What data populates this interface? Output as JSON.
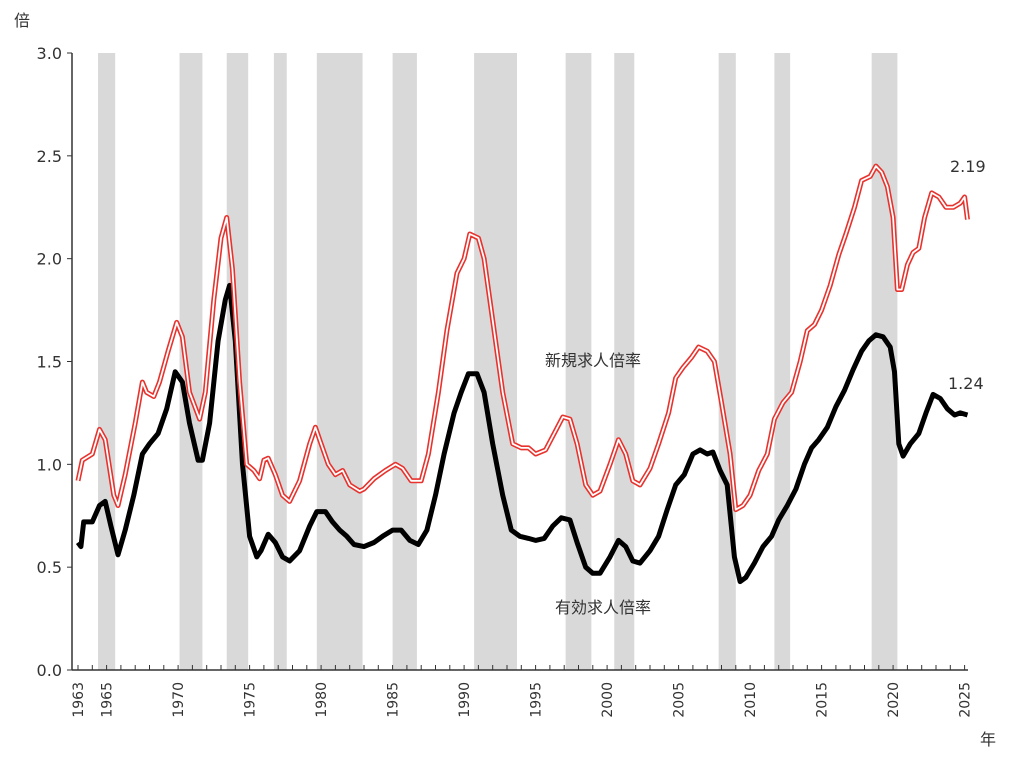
{
  "chart_data": {
    "type": "line",
    "title": "",
    "ylabel": "倍",
    "xlabel": "年",
    "ylim": [
      0,
      3.0
    ],
    "xlim": [
      1963,
      2025
    ],
    "yticks": [
      "0.0",
      "0.5",
      "1.0",
      "1.5",
      "2.0",
      "2.5",
      "3.0"
    ],
    "xticks": [
      "1963",
      "1965",
      "1970",
      "1975",
      "1980",
      "1985",
      "1990",
      "1995",
      "2000",
      "2005",
      "2010",
      "2015",
      "2020",
      "2025"
    ],
    "grid": false,
    "recession_bands": [
      [
        1964.4,
        1965.6
      ],
      [
        1970.1,
        1971.7
      ],
      [
        1973.4,
        1974.9
      ],
      [
        1976.7,
        1977.6
      ],
      [
        1979.7,
        1982.9
      ],
      [
        1985.0,
        1986.7
      ],
      [
        1990.7,
        1993.7
      ],
      [
        1997.1,
        1998.9
      ],
      [
        2000.5,
        2001.9
      ],
      [
        2007.8,
        2009.0
      ],
      [
        2011.7,
        2012.8
      ],
      [
        2018.5,
        2020.3
      ]
    ],
    "series": [
      {
        "name": "新規求人倍率",
        "color": "#e8322d",
        "end_label": "2.19",
        "points": [
          [
            1963.0,
            0.92
          ],
          [
            1963.3,
            1.02
          ],
          [
            1964.0,
            1.05
          ],
          [
            1964.5,
            1.17
          ],
          [
            1964.9,
            1.12
          ],
          [
            1965.5,
            0.85
          ],
          [
            1965.8,
            0.8
          ],
          [
            1966.3,
            0.95
          ],
          [
            1967.0,
            1.2
          ],
          [
            1967.5,
            1.4
          ],
          [
            1967.8,
            1.35
          ],
          [
            1968.3,
            1.33
          ],
          [
            1968.7,
            1.4
          ],
          [
            1969.3,
            1.55
          ],
          [
            1969.9,
            1.69
          ],
          [
            1970.3,
            1.62
          ],
          [
            1970.8,
            1.35
          ],
          [
            1971.5,
            1.22
          ],
          [
            1971.9,
            1.35
          ],
          [
            1972.5,
            1.8
          ],
          [
            1973.0,
            2.1
          ],
          [
            1973.4,
            2.2
          ],
          [
            1973.8,
            1.95
          ],
          [
            1974.3,
            1.4
          ],
          [
            1974.8,
            1.0
          ],
          [
            1975.3,
            0.97
          ],
          [
            1975.7,
            0.93
          ],
          [
            1976.0,
            1.02
          ],
          [
            1976.3,
            1.03
          ],
          [
            1976.8,
            0.95
          ],
          [
            1977.3,
            0.85
          ],
          [
            1977.8,
            0.82
          ],
          [
            1978.5,
            0.92
          ],
          [
            1979.2,
            1.1
          ],
          [
            1979.6,
            1.18
          ],
          [
            1980.0,
            1.1
          ],
          [
            1980.5,
            1.0
          ],
          [
            1981.0,
            0.95
          ],
          [
            1981.5,
            0.97
          ],
          [
            1982.0,
            0.9
          ],
          [
            1982.7,
            0.87
          ],
          [
            1983.0,
            0.88
          ],
          [
            1983.7,
            0.93
          ],
          [
            1984.5,
            0.97
          ],
          [
            1985.2,
            1.0
          ],
          [
            1985.7,
            0.98
          ],
          [
            1986.3,
            0.92
          ],
          [
            1987.0,
            0.92
          ],
          [
            1987.5,
            1.05
          ],
          [
            1988.2,
            1.35
          ],
          [
            1988.8,
            1.65
          ],
          [
            1989.5,
            1.93
          ],
          [
            1990.0,
            2.0
          ],
          [
            1990.4,
            2.12
          ],
          [
            1991.0,
            2.1
          ],
          [
            1991.4,
            2.0
          ],
          [
            1992.0,
            1.7
          ],
          [
            1992.7,
            1.35
          ],
          [
            1993.4,
            1.1
          ],
          [
            1994.0,
            1.08
          ],
          [
            1994.5,
            1.08
          ],
          [
            1995.0,
            1.05
          ],
          [
            1995.7,
            1.07
          ],
          [
            1996.3,
            1.15
          ],
          [
            1996.9,
            1.23
          ],
          [
            1997.4,
            1.22
          ],
          [
            1997.9,
            1.1
          ],
          [
            1998.5,
            0.9
          ],
          [
            1999.0,
            0.85
          ],
          [
            1999.5,
            0.87
          ],
          [
            2000.2,
            1.0
          ],
          [
            2000.8,
            1.12
          ],
          [
            2001.3,
            1.05
          ],
          [
            2001.8,
            0.92
          ],
          [
            2002.3,
            0.9
          ],
          [
            2003.0,
            0.98
          ],
          [
            2003.6,
            1.1
          ],
          [
            2004.3,
            1.25
          ],
          [
            2004.8,
            1.42
          ],
          [
            2005.3,
            1.47
          ],
          [
            2005.9,
            1.52
          ],
          [
            2006.4,
            1.57
          ],
          [
            2007.0,
            1.55
          ],
          [
            2007.5,
            1.5
          ],
          [
            2008.0,
            1.3
          ],
          [
            2008.6,
            1.05
          ],
          [
            2009.0,
            0.78
          ],
          [
            2009.5,
            0.8
          ],
          [
            2010.0,
            0.85
          ],
          [
            2010.6,
            0.97
          ],
          [
            2011.2,
            1.05
          ],
          [
            2011.7,
            1.22
          ],
          [
            2012.3,
            1.3
          ],
          [
            2012.9,
            1.35
          ],
          [
            2013.5,
            1.5
          ],
          [
            2014.0,
            1.65
          ],
          [
            2014.5,
            1.68
          ],
          [
            2015.0,
            1.75
          ],
          [
            2015.6,
            1.87
          ],
          [
            2016.2,
            2.02
          ],
          [
            2016.7,
            2.12
          ],
          [
            2017.3,
            2.25
          ],
          [
            2017.8,
            2.38
          ],
          [
            2018.4,
            2.4
          ],
          [
            2018.8,
            2.45
          ],
          [
            2019.2,
            2.42
          ],
          [
            2019.6,
            2.35
          ],
          [
            2020.0,
            2.2
          ],
          [
            2020.3,
            1.85
          ],
          [
            2020.6,
            1.85
          ],
          [
            2021.0,
            1.97
          ],
          [
            2021.4,
            2.03
          ],
          [
            2021.8,
            2.05
          ],
          [
            2022.2,
            2.2
          ],
          [
            2022.7,
            2.32
          ],
          [
            2023.2,
            2.3
          ],
          [
            2023.7,
            2.25
          ],
          [
            2024.2,
            2.25
          ],
          [
            2024.7,
            2.27
          ],
          [
            2025.0,
            2.3
          ],
          [
            2025.2,
            2.19
          ]
        ]
      },
      {
        "name": "有効求人倍率",
        "color": "#000000",
        "end_label": "1.24",
        "points": [
          [
            1963.0,
            0.62
          ],
          [
            1963.2,
            0.6
          ],
          [
            1963.4,
            0.72
          ],
          [
            1964.0,
            0.72
          ],
          [
            1964.5,
            0.8
          ],
          [
            1964.9,
            0.82
          ],
          [
            1965.3,
            0.7
          ],
          [
            1965.8,
            0.56
          ],
          [
            1966.3,
            0.68
          ],
          [
            1966.9,
            0.85
          ],
          [
            1967.5,
            1.05
          ],
          [
            1968.0,
            1.1
          ],
          [
            1968.6,
            1.15
          ],
          [
            1969.2,
            1.27
          ],
          [
            1969.8,
            1.45
          ],
          [
            1970.3,
            1.4
          ],
          [
            1970.8,
            1.2
          ],
          [
            1971.4,
            1.02
          ],
          [
            1971.7,
            1.02
          ],
          [
            1972.2,
            1.2
          ],
          [
            1972.8,
            1.6
          ],
          [
            1973.3,
            1.8
          ],
          [
            1973.6,
            1.87
          ],
          [
            1974.0,
            1.6
          ],
          [
            1974.5,
            1.0
          ],
          [
            1975.0,
            0.65
          ],
          [
            1975.5,
            0.55
          ],
          [
            1975.8,
            0.58
          ],
          [
            1976.3,
            0.66
          ],
          [
            1976.8,
            0.62
          ],
          [
            1977.3,
            0.55
          ],
          [
            1977.8,
            0.53
          ],
          [
            1978.5,
            0.58
          ],
          [
            1979.2,
            0.7
          ],
          [
            1979.7,
            0.77
          ],
          [
            1980.3,
            0.77
          ],
          [
            1980.8,
            0.72
          ],
          [
            1981.3,
            0.68
          ],
          [
            1981.8,
            0.65
          ],
          [
            1982.3,
            0.61
          ],
          [
            1983.0,
            0.6
          ],
          [
            1983.7,
            0.62
          ],
          [
            1984.3,
            0.65
          ],
          [
            1985.0,
            0.68
          ],
          [
            1985.6,
            0.68
          ],
          [
            1986.2,
            0.63
          ],
          [
            1986.8,
            0.61
          ],
          [
            1987.4,
            0.68
          ],
          [
            1988.0,
            0.85
          ],
          [
            1988.6,
            1.05
          ],
          [
            1989.3,
            1.25
          ],
          [
            1989.8,
            1.35
          ],
          [
            1990.3,
            1.44
          ],
          [
            1990.9,
            1.44
          ],
          [
            1991.4,
            1.35
          ],
          [
            1992.0,
            1.1
          ],
          [
            1992.7,
            0.85
          ],
          [
            1993.3,
            0.68
          ],
          [
            1993.9,
            0.65
          ],
          [
            1994.5,
            0.64
          ],
          [
            1995.0,
            0.63
          ],
          [
            1995.6,
            0.64
          ],
          [
            1996.2,
            0.7
          ],
          [
            1996.8,
            0.74
          ],
          [
            1997.4,
            0.73
          ],
          [
            1997.9,
            0.62
          ],
          [
            1998.5,
            0.5
          ],
          [
            1999.0,
            0.47
          ],
          [
            1999.5,
            0.47
          ],
          [
            2000.2,
            0.55
          ],
          [
            2000.8,
            0.63
          ],
          [
            2001.3,
            0.6
          ],
          [
            2001.8,
            0.53
          ],
          [
            2002.3,
            0.52
          ],
          [
            2003.0,
            0.58
          ],
          [
            2003.6,
            0.65
          ],
          [
            2004.2,
            0.78
          ],
          [
            2004.8,
            0.9
          ],
          [
            2005.4,
            0.95
          ],
          [
            2006.0,
            1.05
          ],
          [
            2006.5,
            1.07
          ],
          [
            2007.0,
            1.05
          ],
          [
            2007.4,
            1.06
          ],
          [
            2007.9,
            0.97
          ],
          [
            2008.4,
            0.9
          ],
          [
            2008.9,
            0.55
          ],
          [
            2009.3,
            0.43
          ],
          [
            2009.7,
            0.45
          ],
          [
            2010.3,
            0.52
          ],
          [
            2010.9,
            0.6
          ],
          [
            2011.5,
            0.65
          ],
          [
            2012.0,
            0.73
          ],
          [
            2012.6,
            0.8
          ],
          [
            2013.2,
            0.88
          ],
          [
            2013.8,
            1.0
          ],
          [
            2014.3,
            1.08
          ],
          [
            2014.8,
            1.12
          ],
          [
            2015.4,
            1.18
          ],
          [
            2016.0,
            1.28
          ],
          [
            2016.6,
            1.36
          ],
          [
            2017.2,
            1.46
          ],
          [
            2017.8,
            1.55
          ],
          [
            2018.3,
            1.6
          ],
          [
            2018.8,
            1.63
          ],
          [
            2019.3,
            1.62
          ],
          [
            2019.8,
            1.57
          ],
          [
            2020.1,
            1.45
          ],
          [
            2020.4,
            1.1
          ],
          [
            2020.7,
            1.04
          ],
          [
            2021.2,
            1.1
          ],
          [
            2021.8,
            1.15
          ],
          [
            2022.3,
            1.25
          ],
          [
            2022.8,
            1.34
          ],
          [
            2023.3,
            1.32
          ],
          [
            2023.8,
            1.27
          ],
          [
            2024.3,
            1.24
          ],
          [
            2024.7,
            1.25
          ],
          [
            2025.2,
            1.24
          ]
        ]
      }
    ]
  }
}
